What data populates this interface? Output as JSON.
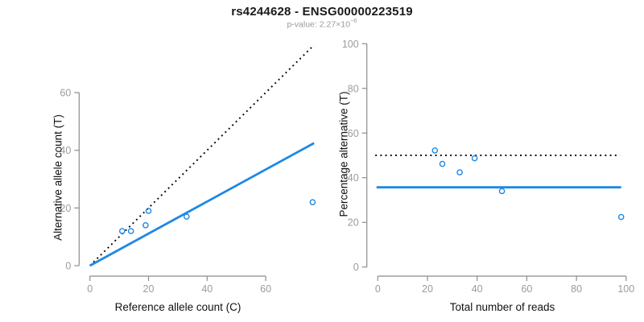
{
  "header": {
    "title": "rs4244628 - ENSG00000223519",
    "subtitle_prefix": "p-value: 2.27×10",
    "subtitle_exponent": "−6"
  },
  "colors": {
    "point_blue": "#1E88E5",
    "line_blue": "#1E88E5",
    "dotted_black": "#000000",
    "axis_line_gray": "#8C8C8C",
    "tick_label_gray": "#9B9B9B",
    "title_black": "#1A1A1A",
    "subtitle_gray": "#9A9A9A"
  },
  "chart_data": [
    {
      "type": "scatter",
      "panel": "allele-counts",
      "xlabel": "Reference allele count (C)",
      "ylabel": "Alternative allele count (T)",
      "xticks": [
        0,
        20,
        40,
        60
      ],
      "yticks": [
        0,
        20,
        40,
        60
      ],
      "xlim": [
        0,
        78
      ],
      "ylim": [
        0,
        79
      ],
      "grid": false,
      "legend": null,
      "points": [
        [
          11,
          12
        ],
        [
          14,
          12
        ],
        [
          19,
          14
        ],
        [
          20,
          19
        ],
        [
          33,
          17
        ],
        [
          76,
          22
        ]
      ],
      "lines": [
        {
          "name": "identity-line",
          "style": "dotted",
          "color": "black",
          "x1": 0,
          "y1": 0,
          "x2": 76.5,
          "y2": 76.5
        },
        {
          "name": "regression-line",
          "style": "solid",
          "color": "blue",
          "x1": 0,
          "y1": 0,
          "x2": 76.5,
          "y2": 42.5
        }
      ]
    },
    {
      "type": "scatter",
      "panel": "percentage-alternative",
      "xlabel": "Total number of reads",
      "ylabel": "Percentage alternative (T)",
      "xticks": [
        0,
        20,
        40,
        60,
        80,
        100
      ],
      "yticks": [
        0,
        20,
        40,
        60,
        80,
        100
      ],
      "xlim": [
        0,
        100
      ],
      "ylim": [
        0,
        100
      ],
      "grid": false,
      "legend": null,
      "points": [
        [
          23,
          52.2
        ],
        [
          26,
          46.2
        ],
        [
          33,
          42.4
        ],
        [
          39,
          48.7
        ],
        [
          50,
          34
        ],
        [
          98,
          22.4
        ]
      ],
      "lines": [
        {
          "name": "expected-50pct-line",
          "style": "dotted",
          "color": "black",
          "x1": -1,
          "y1": 50,
          "x2": 97.5,
          "y2": 50
        },
        {
          "name": "observed-mean-line",
          "style": "solid",
          "color": "blue",
          "x1": -0.5,
          "y1": 35.7,
          "x2": 98,
          "y2": 35.7
        }
      ]
    }
  ]
}
